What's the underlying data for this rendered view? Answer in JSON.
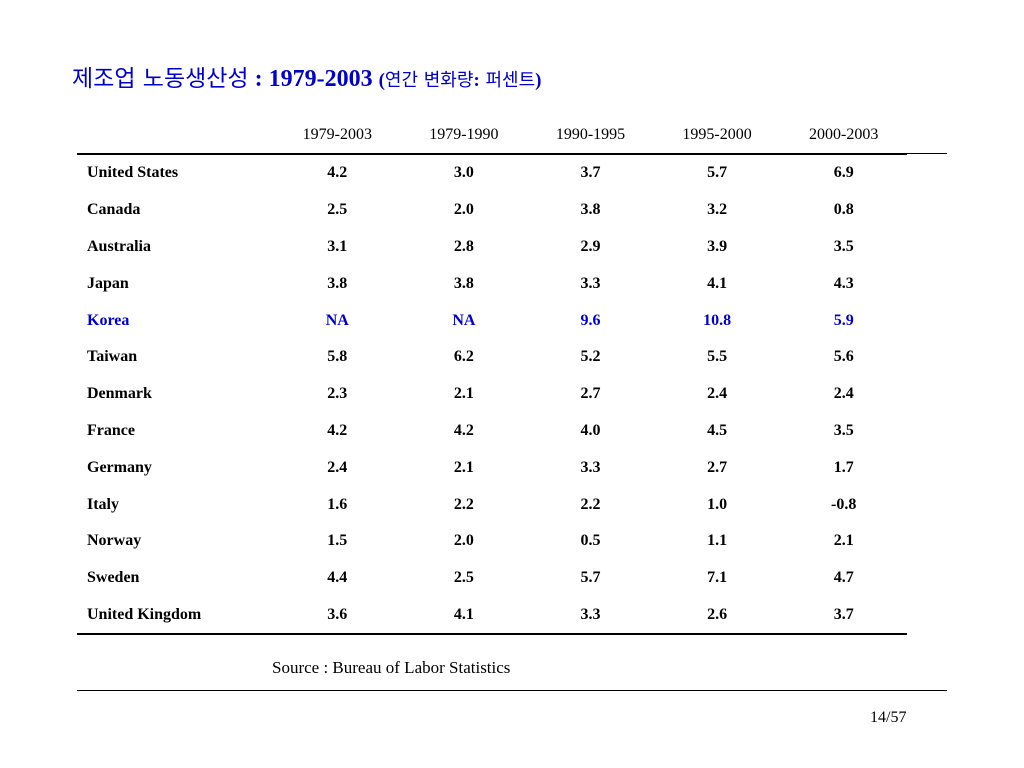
{
  "title": {
    "korean": "제조업 노동생산성",
    "latin": " : 1979-2003 ",
    "paren_open": "(",
    "sub_korean": "연간 변화량",
    "sub_colon": ":",
    "sub_korean2": " 퍼센트",
    "paren_close": ")"
  },
  "table": {
    "headers": [
      "",
      "1979-2003",
      "1979-1990",
      "1990-1995",
      "1995-2000",
      "2000-2003"
    ],
    "rows": [
      {
        "country": "United States",
        "values": [
          "4.2",
          "3.0",
          "3.7",
          "5.7",
          "6.9"
        ]
      },
      {
        "country": "Canada",
        "values": [
          "2.5",
          "2.0",
          "3.8",
          "3.2",
          "0.8"
        ]
      },
      {
        "country": "Australia",
        "values": [
          "3.1",
          "2.8",
          "2.9",
          "3.9",
          "3.5"
        ]
      },
      {
        "country": "Japan",
        "values": [
          "3.8",
          "3.8",
          "3.3",
          "4.1",
          "4.3"
        ]
      },
      {
        "country": "Korea",
        "values": [
          "NA",
          "NA",
          "9.6",
          "10.8",
          "5.9"
        ]
      },
      {
        "country": "Taiwan",
        "values": [
          "5.8",
          "6.2",
          "5.2",
          "5.5",
          "5.6"
        ]
      },
      {
        "country": "Denmark",
        "values": [
          "2.3",
          "2.1",
          "2.7",
          "2.4",
          "2.4"
        ]
      },
      {
        "country": "France",
        "values": [
          "4.2",
          "4.2",
          "4.0",
          "4.5",
          "3.5"
        ]
      },
      {
        "country": "Germany",
        "values": [
          "2.4",
          "2.1",
          "3.3",
          "2.7",
          "1.7"
        ]
      },
      {
        "country": "Italy",
        "values": [
          "1.6",
          "2.2",
          "2.2",
          "1.0",
          "-0.8"
        ]
      },
      {
        "country": "Norway",
        "values": [
          "1.5",
          "2.0",
          "0.5",
          "1.1",
          "2.1"
        ]
      },
      {
        "country": "Sweden",
        "values": [
          "4.4",
          "2.5",
          "5.7",
          "7.1",
          "4.7"
        ]
      },
      {
        "country": "United Kingdom",
        "values": [
          "3.6",
          "4.1",
          "3.3",
          "2.6",
          "3.7"
        ]
      }
    ]
  },
  "highlight_color": "#0000cc",
  "source": "Source : Bureau of Labor Statistics",
  "page_number": "14/57"
}
